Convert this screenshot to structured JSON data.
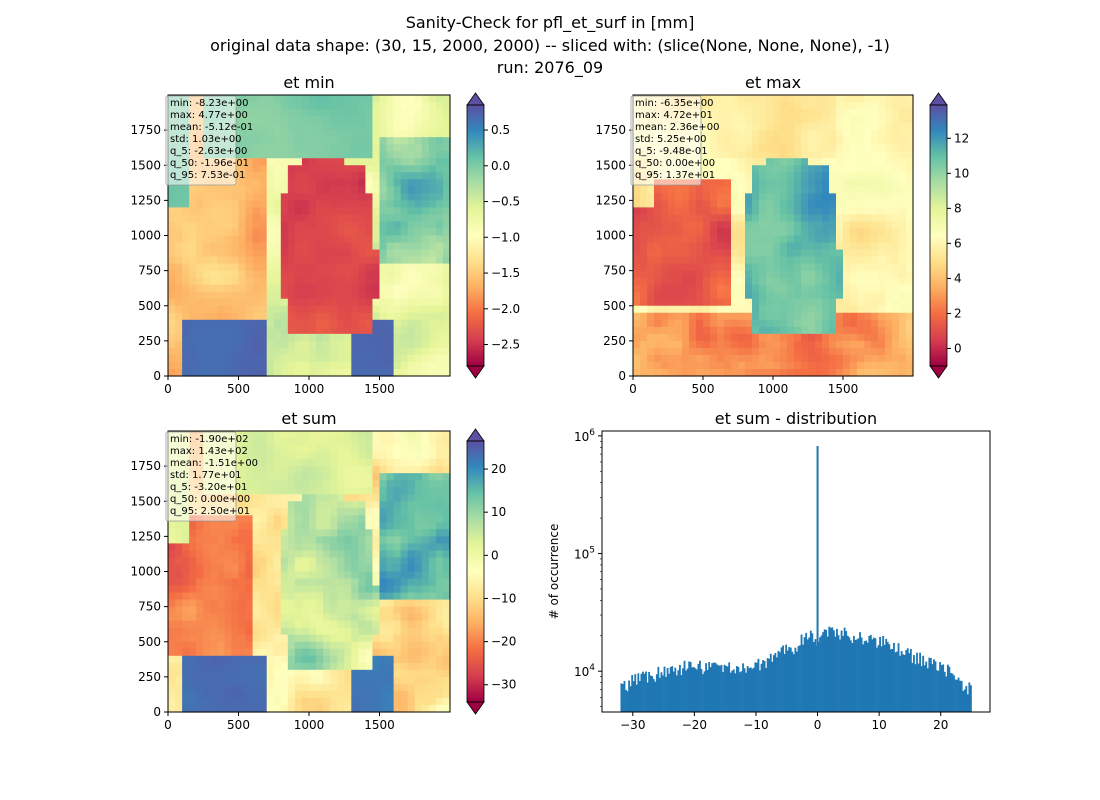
{
  "suptitle": {
    "line1": "Sanity-Check for pfl_et_surf in [mm]",
    "line2": "original data shape: (30, 15, 2000, 2000) -- sliced with: (slice(None, None, None), -1)",
    "line3": "run: 2076_09"
  },
  "colors": {
    "spectral": [
      "#9e0142",
      "#d53e4f",
      "#f46d43",
      "#fdae61",
      "#fee08b",
      "#ffffbf",
      "#e6f598",
      "#abdda4",
      "#66c2a5",
      "#3288bd",
      "#5e4fa2"
    ],
    "hist_bar": "#1f77b4"
  },
  "chart_data": [
    {
      "type": "heatmap",
      "title": "et min",
      "xlim": [
        0,
        2000
      ],
      "ylim": [
        0,
        2000
      ],
      "xticks": [
        0,
        500,
        1000,
        1500
      ],
      "yticks": [
        0,
        250,
        500,
        750,
        1000,
        1250,
        1500,
        1750
      ],
      "colorbar": {
        "range": [
          -2.8,
          0.85
        ],
        "ticks": [
          0.5,
          0.0,
          -0.5,
          -1.0,
          -1.5,
          -2.0,
          -2.5
        ],
        "tick_labels": [
          "0.5",
          "0.0",
          "−0.5",
          "−1.0",
          "−1.5",
          "−2.0",
          "−2.5"
        ]
      },
      "stats": [
        "min: -8.23e+00",
        "max: 4.77e+00",
        "mean: -5.12e-01",
        "std: 1.03e+00",
        "q_5: -2.63e+00",
        "q_50: -1.96e-01",
        "q_95: 7.53e-01"
      ]
    },
    {
      "type": "heatmap",
      "title": "et max",
      "xlim": [
        0,
        2000
      ],
      "ylim": [
        0,
        2000
      ],
      "xticks": [
        0,
        500,
        1000,
        1500
      ],
      "yticks": [
        0,
        250,
        500,
        750,
        1000,
        1250,
        1500,
        1750
      ],
      "colorbar": {
        "range": [
          -1.0,
          13.9
        ],
        "ticks": [
          12,
          10,
          8,
          6,
          4,
          2,
          0
        ],
        "tick_labels": [
          "12",
          "10",
          "8",
          "6",
          "4",
          "2",
          "0"
        ]
      },
      "stats": [
        "min: -6.35e+00",
        "max: 4.72e+01",
        "mean: 2.36e+00",
        "std: 5.25e+00",
        "q_5: -9.48e-01",
        "q_50: 0.00e+00",
        "q_95: 1.37e+01"
      ]
    },
    {
      "type": "heatmap",
      "title": "et sum",
      "xlim": [
        0,
        2000
      ],
      "ylim": [
        0,
        2000
      ],
      "xticks": [
        0,
        500,
        1000,
        1500
      ],
      "yticks": [
        0,
        250,
        500,
        750,
        1000,
        1250,
        1500,
        1750
      ],
      "colorbar": {
        "range": [
          -34,
          26.5
        ],
        "ticks": [
          20,
          10,
          0,
          -10,
          -20,
          -30
        ],
        "tick_labels": [
          "20",
          "10",
          "0",
          "−10",
          "−20",
          "−30"
        ]
      },
      "stats": [
        "min: -1.90e+02",
        "max: 1.43e+02",
        "mean: -1.51e+00",
        "std: 1.77e+01",
        "q_5: -3.20e+01",
        "q_50: 0.00e+00",
        "q_95: 2.50e+01"
      ]
    },
    {
      "type": "bar",
      "title": "et sum - distribution",
      "ylabel": "# of occurrence",
      "xlabel": "",
      "xlim": [
        -35,
        28
      ],
      "yscale": "log",
      "ylim": [
        4500,
        1100000
      ],
      "xticks": [
        -30,
        -20,
        -10,
        0,
        10,
        20
      ],
      "xtick_labels": [
        "−30",
        "−20",
        "−10",
        "0",
        "10",
        "20"
      ],
      "ytick_labels": [
        {
          "base": "10",
          "exp": "4",
          "value": 10000
        },
        {
          "base": "10",
          "exp": "5",
          "value": 100000
        },
        {
          "base": "10",
          "exp": "6",
          "value": 1000000
        }
      ],
      "bin_range": [
        -32,
        25
      ],
      "bin_width": 0.25,
      "spike": {
        "x": 0,
        "count": 820000
      },
      "profile": {
        "x": [
          -32,
          -30,
          -28,
          -26,
          -24,
          -22,
          -20,
          -18,
          -16,
          -14,
          -12,
          -10,
          -8,
          -6,
          -4,
          -2,
          -1,
          0,
          1,
          2,
          4,
          6,
          8,
          10,
          12,
          14,
          16,
          18,
          20,
          22,
          24,
          25
        ],
        "counts": [
          7000,
          8400,
          9000,
          9500,
          10200,
          10800,
          11000,
          10700,
          10800,
          10500,
          10400,
          11000,
          12500,
          14200,
          16000,
          19500,
          20500,
          17000,
          21500,
          22000,
          21000,
          20000,
          19000,
          18000,
          16800,
          14500,
          13000,
          12000,
          10800,
          9600,
          7500,
          6800
        ]
      }
    }
  ]
}
